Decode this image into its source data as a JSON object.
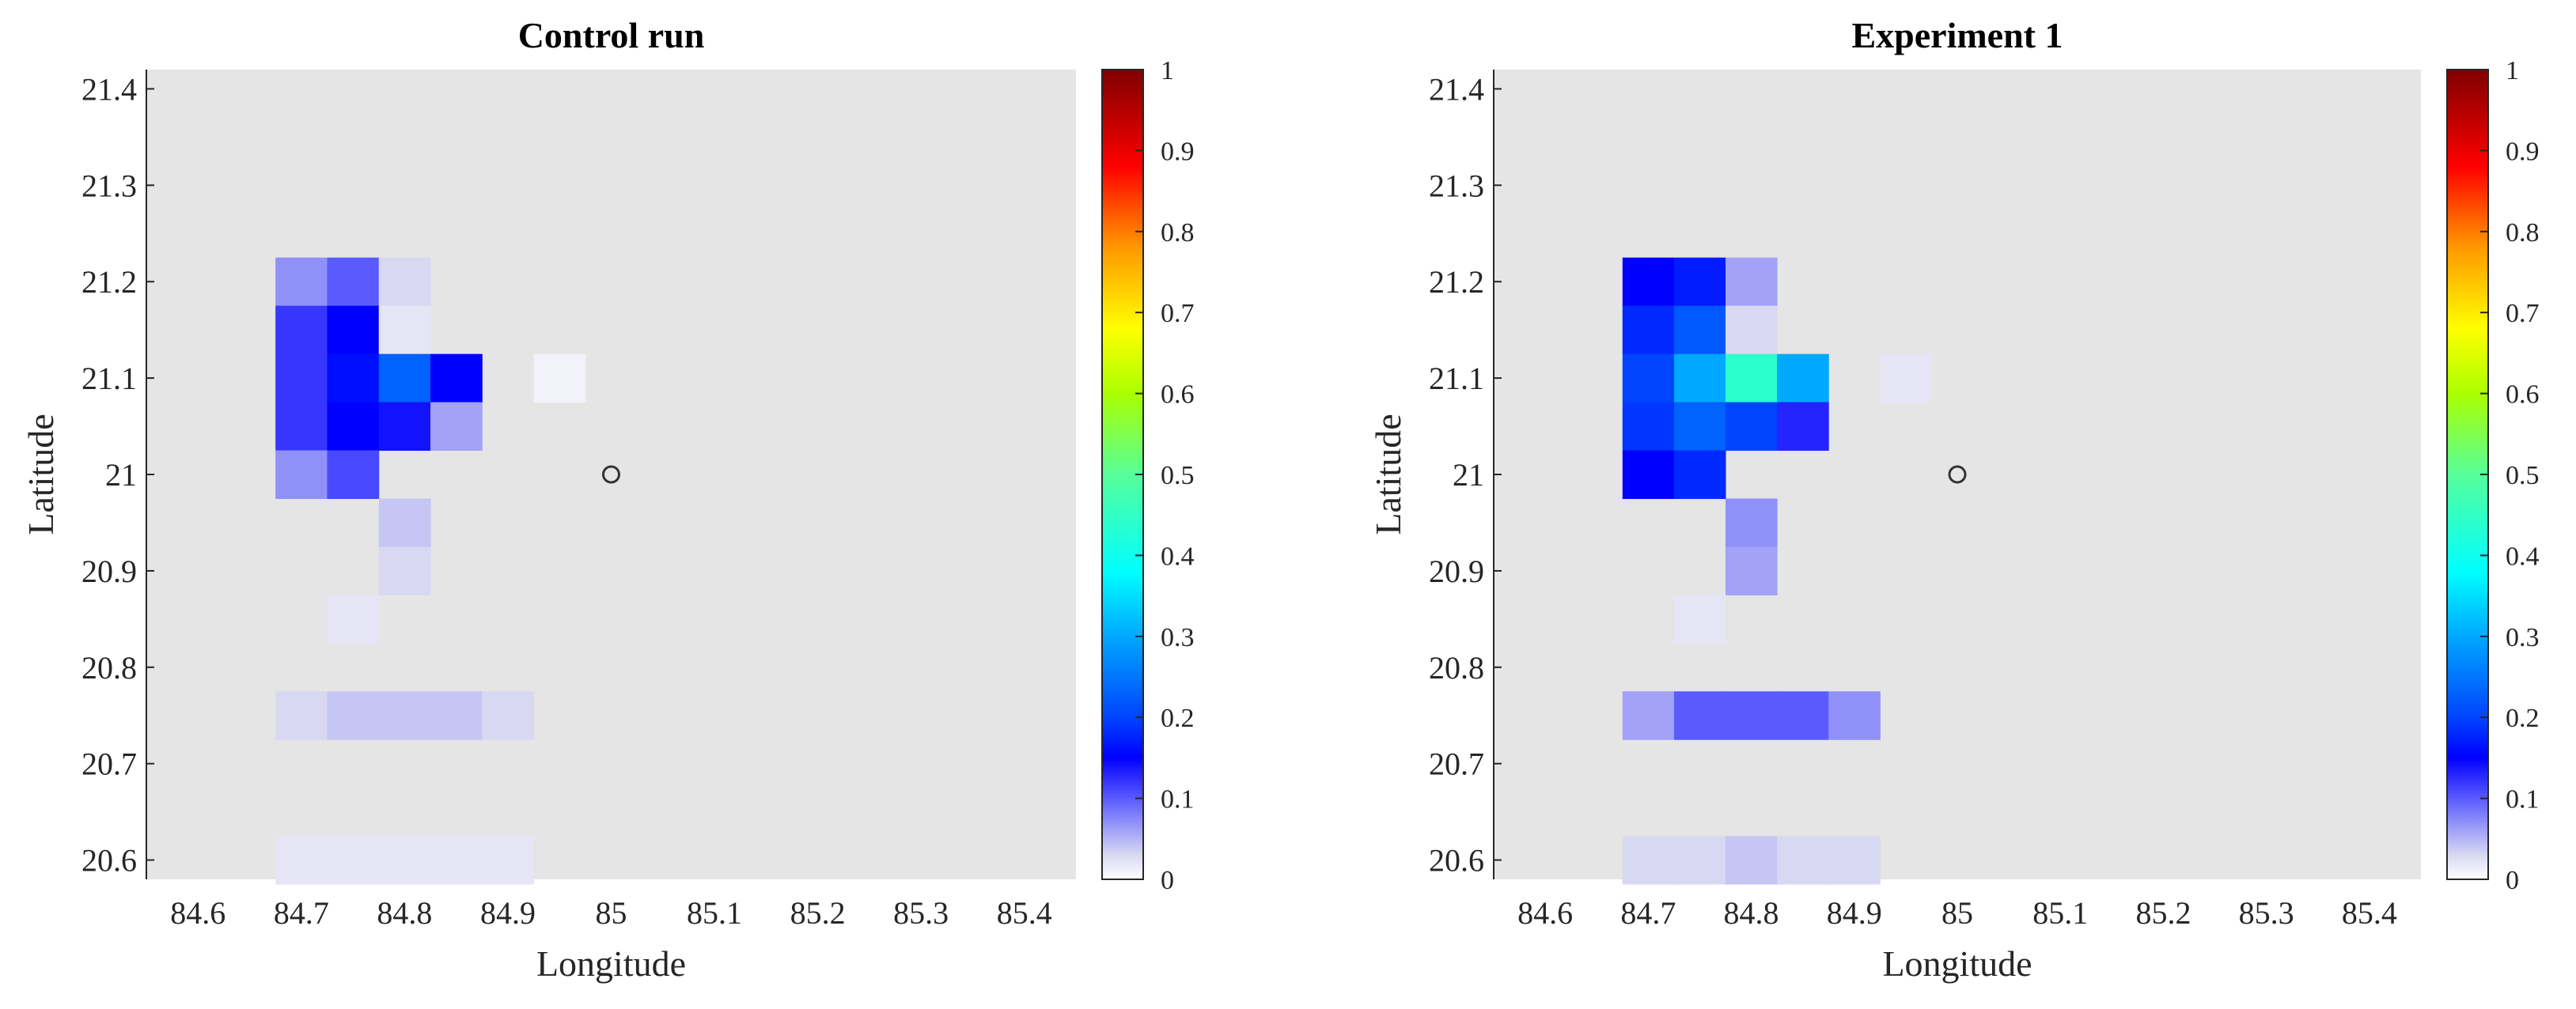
{
  "chart_data": [
    {
      "type": "heatmap",
      "title": "Control run",
      "xlabel": "Longitude",
      "ylabel": "Latitude",
      "xlim": [
        84.55,
        85.45
      ],
      "ylim": [
        20.58,
        21.42
      ],
      "xticks": [
        "84.6",
        "84.7",
        "84.8",
        "84.9",
        "85",
        "85.1",
        "85.2",
        "85.3",
        "85.4"
      ],
      "yticks": [
        "20.6",
        "20.7",
        "20.8",
        "20.9",
        "21",
        "21.1",
        "21.2",
        "21.3",
        "21.4"
      ],
      "colorbar": {
        "range": [
          0,
          1
        ],
        "ticks": [
          "0",
          "0.1",
          "0.2",
          "0.3",
          "0.4",
          "0.5",
          "0.6",
          "0.7",
          "0.8",
          "0.9",
          "1"
        ],
        "colormap": "white-blue-jet"
      },
      "cell_size": 0.05,
      "cells": [
        {
          "lon": 84.7,
          "lat": 21.2,
          "value": 0.07
        },
        {
          "lon": 84.75,
          "lat": 21.2,
          "value": 0.1
        },
        {
          "lon": 84.8,
          "lat": 21.2,
          "value": 0.03
        },
        {
          "lon": 84.7,
          "lat": 21.15,
          "value": 0.12
        },
        {
          "lon": 84.75,
          "lat": 21.15,
          "value": 0.15
        },
        {
          "lon": 84.8,
          "lat": 21.15,
          "value": 0.02
        },
        {
          "lon": 84.7,
          "lat": 21.1,
          "value": 0.12
        },
        {
          "lon": 84.75,
          "lat": 21.1,
          "value": 0.16
        },
        {
          "lon": 84.8,
          "lat": 21.1,
          "value": 0.23
        },
        {
          "lon": 84.85,
          "lat": 21.1,
          "value": 0.15
        },
        {
          "lon": 84.95,
          "lat": 21.1,
          "value": 0.01
        },
        {
          "lon": 84.7,
          "lat": 21.05,
          "value": 0.12
        },
        {
          "lon": 84.75,
          "lat": 21.05,
          "value": 0.15
        },
        {
          "lon": 84.8,
          "lat": 21.05,
          "value": 0.14
        },
        {
          "lon": 84.85,
          "lat": 21.05,
          "value": 0.06
        },
        {
          "lon": 84.7,
          "lat": 21.0,
          "value": 0.07
        },
        {
          "lon": 84.75,
          "lat": 21.0,
          "value": 0.11
        },
        {
          "lon": 84.8,
          "lat": 20.95,
          "value": 0.04
        },
        {
          "lon": 84.8,
          "lat": 20.9,
          "value": 0.03
        },
        {
          "lon": 84.75,
          "lat": 20.85,
          "value": 0.02
        },
        {
          "lon": 84.7,
          "lat": 20.75,
          "value": 0.03
        },
        {
          "lon": 84.75,
          "lat": 20.75,
          "value": 0.04
        },
        {
          "lon": 84.8,
          "lat": 20.75,
          "value": 0.04
        },
        {
          "lon": 84.85,
          "lat": 20.75,
          "value": 0.04
        },
        {
          "lon": 84.9,
          "lat": 20.75,
          "value": 0.03
        },
        {
          "lon": 84.7,
          "lat": 20.6,
          "value": 0.02
        },
        {
          "lon": 84.75,
          "lat": 20.6,
          "value": 0.02
        },
        {
          "lon": 84.8,
          "lat": 20.6,
          "value": 0.02
        },
        {
          "lon": 84.85,
          "lat": 20.6,
          "value": 0.02
        },
        {
          "lon": 84.9,
          "lat": 20.6,
          "value": 0.02
        }
      ],
      "marker": {
        "lon": 85.0,
        "lat": 21.0
      }
    },
    {
      "type": "heatmap",
      "title": "Experiment 1",
      "xlabel": "Longitude",
      "ylabel": "Latitude",
      "xlim": [
        84.55,
        85.45
      ],
      "ylim": [
        20.58,
        21.42
      ],
      "xticks": [
        "84.6",
        "84.7",
        "84.8",
        "84.9",
        "85",
        "85.1",
        "85.2",
        "85.3",
        "85.4"
      ],
      "yticks": [
        "20.6",
        "20.7",
        "20.8",
        "20.9",
        "21",
        "21.1",
        "21.2",
        "21.3",
        "21.4"
      ],
      "colorbar": {
        "range": [
          0,
          1
        ],
        "ticks": [
          "0",
          "0.1",
          "0.2",
          "0.3",
          "0.4",
          "0.5",
          "0.6",
          "0.7",
          "0.8",
          "0.9",
          "1"
        ],
        "colormap": "white-blue-jet"
      },
      "cell_size": 0.05,
      "cells": [
        {
          "lon": 84.7,
          "lat": 21.2,
          "value": 0.15
        },
        {
          "lon": 84.75,
          "lat": 21.2,
          "value": 0.17
        },
        {
          "lon": 84.8,
          "lat": 21.2,
          "value": 0.06
        },
        {
          "lon": 84.7,
          "lat": 21.15,
          "value": 0.18
        },
        {
          "lon": 84.75,
          "lat": 21.15,
          "value": 0.22
        },
        {
          "lon": 84.8,
          "lat": 21.15,
          "value": 0.03
        },
        {
          "lon": 84.7,
          "lat": 21.1,
          "value": 0.2
        },
        {
          "lon": 84.75,
          "lat": 21.1,
          "value": 0.3
        },
        {
          "lon": 84.8,
          "lat": 21.1,
          "value": 0.44
        },
        {
          "lon": 84.85,
          "lat": 21.1,
          "value": 0.3
        },
        {
          "lon": 84.95,
          "lat": 21.1,
          "value": 0.02
        },
        {
          "lon": 84.7,
          "lat": 21.05,
          "value": 0.19
        },
        {
          "lon": 84.75,
          "lat": 21.05,
          "value": 0.23
        },
        {
          "lon": 84.8,
          "lat": 21.05,
          "value": 0.2
        },
        {
          "lon": 84.85,
          "lat": 21.05,
          "value": 0.13
        },
        {
          "lon": 84.7,
          "lat": 21.0,
          "value": 0.15
        },
        {
          "lon": 84.75,
          "lat": 21.0,
          "value": 0.18
        },
        {
          "lon": 84.8,
          "lat": 20.95,
          "value": 0.07
        },
        {
          "lon": 84.8,
          "lat": 20.9,
          "value": 0.06
        },
        {
          "lon": 84.75,
          "lat": 20.85,
          "value": 0.02
        },
        {
          "lon": 84.7,
          "lat": 20.75,
          "value": 0.06
        },
        {
          "lon": 84.75,
          "lat": 20.75,
          "value": 0.1
        },
        {
          "lon": 84.8,
          "lat": 20.75,
          "value": 0.1
        },
        {
          "lon": 84.85,
          "lat": 20.75,
          "value": 0.1
        },
        {
          "lon": 84.9,
          "lat": 20.75,
          "value": 0.07
        },
        {
          "lon": 84.7,
          "lat": 20.6,
          "value": 0.03
        },
        {
          "lon": 84.75,
          "lat": 20.6,
          "value": 0.03
        },
        {
          "lon": 84.8,
          "lat": 20.6,
          "value": 0.04
        },
        {
          "lon": 84.85,
          "lat": 20.6,
          "value": 0.03
        },
        {
          "lon": 84.9,
          "lat": 20.6,
          "value": 0.03
        }
      ],
      "marker": {
        "lon": 85.0,
        "lat": 21.0
      }
    }
  ],
  "colors": {
    "plot_background": "#e5e5e5",
    "marker_stroke": "#333333"
  }
}
